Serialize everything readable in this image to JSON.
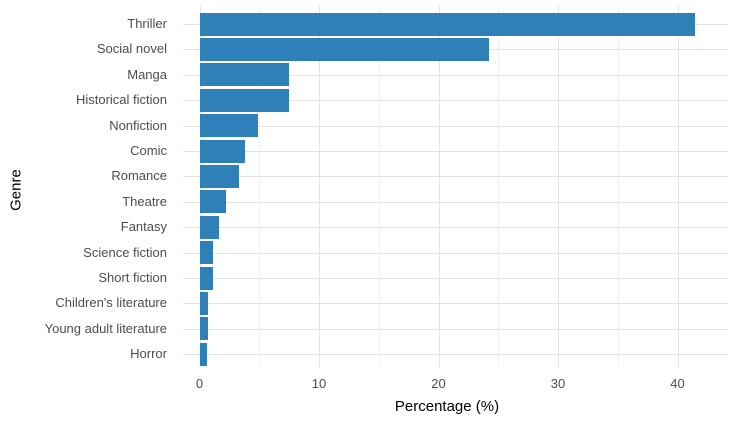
{
  "chart_data": {
    "type": "bar",
    "orientation": "horizontal",
    "title": "",
    "xlabel": "Percentage (%)",
    "ylabel": "Genre",
    "categories": [
      "Thriller",
      "Social novel",
      "Manga",
      "Historical fiction",
      "Nonfiction",
      "Comic",
      "Romance",
      "Theatre",
      "Fantasy",
      "Science fiction",
      "Short fiction",
      "Children's literature",
      "Young adult literature",
      "Horror"
    ],
    "values": [
      41.5,
      24.2,
      7.5,
      7.5,
      4.9,
      3.8,
      3.3,
      2.2,
      1.6,
      1.1,
      1.1,
      0.7,
      0.7,
      0.6
    ],
    "xlim": [
      0,
      44
    ],
    "xticks": [
      0,
      10,
      20,
      30,
      40
    ],
    "minor_xticks": [
      5,
      15,
      25,
      35
    ],
    "grid": true,
    "legend": false,
    "bar_color": "#2f80b9",
    "major_grid_color": "#e3e3e3",
    "minor_grid_color": "#f1f1f1",
    "tick_label_color": "#4d4d4d",
    "axis_title_color": "#000000",
    "background_color": "#ffffff"
  }
}
